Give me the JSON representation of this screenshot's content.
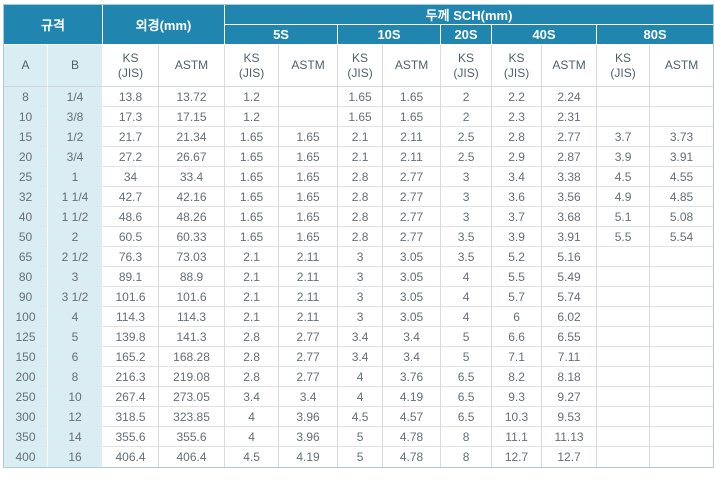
{
  "colors": {
    "header_bg": "#2086B0",
    "header_text": "#FFFFFF",
    "light_cell_bg": "#D9EDF3",
    "outer_border": "#A9CCDB",
    "grid_line": "#DADADA",
    "data_text": "#666F75"
  },
  "table": {
    "header": {
      "spec": "규격",
      "outer_diameter": "외경(mm)",
      "thickness": "두께 SCH(mm)"
    },
    "sch_groups": [
      "5S",
      "10S",
      "20S",
      "40S",
      "80S"
    ],
    "subheaders": [
      "A",
      "B",
      "KS\n(JIS)",
      "ASTM",
      "KS\n(JIS)",
      "ASTM",
      "KS\n(JIS)",
      "ASTM",
      "KS\n(JIS)",
      "KS\n(JIS)",
      "ASTM",
      "KS\n(JIS)",
      "ASTM"
    ],
    "rows": [
      [
        "8",
        "1/4",
        "13.8",
        "13.72",
        "1.2",
        "",
        "1.65",
        "1.65",
        "2",
        "2.2",
        "2.24",
        "",
        ""
      ],
      [
        "10",
        "3/8",
        "17.3",
        "17.15",
        "1.2",
        "",
        "1.65",
        "1.65",
        "2",
        "2.3",
        "2.31",
        "",
        ""
      ],
      [
        "15",
        "1/2",
        "21.7",
        "21.34",
        "1.65",
        "1.65",
        "2.1",
        "2.11",
        "2.5",
        "2.8",
        "2.77",
        "3.7",
        "3.73"
      ],
      [
        "20",
        "3/4",
        "27.2",
        "26.67",
        "1.65",
        "1.65",
        "2.1",
        "2.11",
        "2.5",
        "2.9",
        "2.87",
        "3.9",
        "3.91"
      ],
      [
        "25",
        "1",
        "34",
        "33.4",
        "1.65",
        "1.65",
        "2.8",
        "2.77",
        "3",
        "3.4",
        "3.38",
        "4.5",
        "4.55"
      ],
      [
        "32",
        "1 1/4",
        "42.7",
        "42.16",
        "1.65",
        "1.65",
        "2.8",
        "2.77",
        "3",
        "3.6",
        "3.56",
        "4.9",
        "4.85"
      ],
      [
        "40",
        "1 1/2",
        "48.6",
        "48.26",
        "1.65",
        "1.65",
        "2.8",
        "2.77",
        "3",
        "3.7",
        "3.68",
        "5.1",
        "5.08"
      ],
      [
        "50",
        "2",
        "60.5",
        "60.33",
        "1.65",
        "1.65",
        "2.8",
        "2.77",
        "3.5",
        "3.9",
        "3.91",
        "5.5",
        "5.54"
      ],
      [
        "65",
        "2 1/2",
        "76.3",
        "73.03",
        "2.1",
        "2.11",
        "3",
        "3.05",
        "3.5",
        "5.2",
        "5.16",
        "",
        ""
      ],
      [
        "80",
        "3",
        "89.1",
        "88.9",
        "2.1",
        "2.11",
        "3",
        "3.05",
        "4",
        "5.5",
        "5.49",
        "",
        ""
      ],
      [
        "90",
        "3 1/2",
        "101.6",
        "101.6",
        "2.1",
        "2.11",
        "3",
        "3.05",
        "4",
        "5.7",
        "5.74",
        "",
        ""
      ],
      [
        "100",
        "4",
        "114.3",
        "114.3",
        "2.1",
        "2.11",
        "3",
        "3.05",
        "4",
        "6",
        "6.02",
        "",
        ""
      ],
      [
        "125",
        "5",
        "139.8",
        "141.3",
        "2.8",
        "2.77",
        "3.4",
        "3.4",
        "5",
        "6.6",
        "6.55",
        "",
        ""
      ],
      [
        "150",
        "6",
        "165.2",
        "168.28",
        "2.8",
        "2.77",
        "3.4",
        "3.4",
        "5",
        "7.1",
        "7.11",
        "",
        ""
      ],
      [
        "200",
        "8",
        "216.3",
        "219.08",
        "2.8",
        "2.77",
        "4",
        "3.76",
        "6.5",
        "8.2",
        "8.18",
        "",
        ""
      ],
      [
        "250",
        "10",
        "267.4",
        "273.05",
        "3.4",
        "3.4",
        "4",
        "4.19",
        "6.5",
        "9.3",
        "9.27",
        "",
        ""
      ],
      [
        "300",
        "12",
        "318.5",
        "323.85",
        "4",
        "3.96",
        "4.5",
        "4.57",
        "6.5",
        "10.3",
        "9.53",
        "",
        ""
      ],
      [
        "350",
        "14",
        "355.6",
        "355.6",
        "4",
        "3.96",
        "5",
        "4.78",
        "8",
        "11.1",
        "11.13",
        "",
        ""
      ],
      [
        "400",
        "16",
        "406.4",
        "406.4",
        "4.5",
        "4.19",
        "5",
        "4.78",
        "8",
        "12.7",
        "12.7",
        "",
        ""
      ]
    ]
  }
}
